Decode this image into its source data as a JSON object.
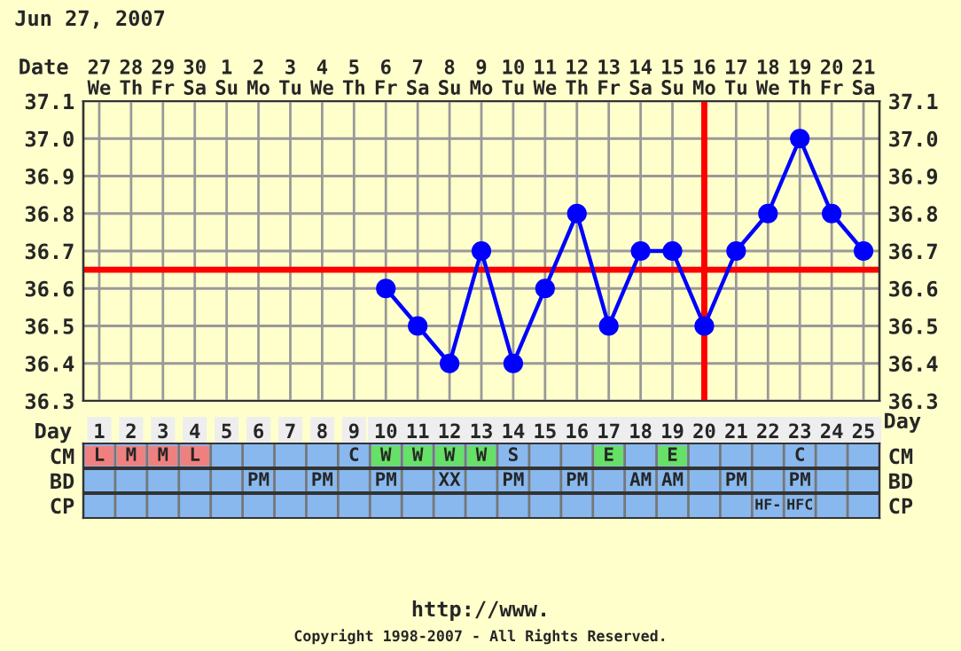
{
  "chart_data": [
    {
      "type": "line",
      "title": "Jun 27, 2007",
      "xlabel": "Day",
      "x2label": "Date",
      "series": [
        {
          "color": "#0000ff",
          "x": [
            10,
            11,
            12,
            13,
            14,
            15,
            16,
            17,
            18,
            19,
            20,
            21,
            22,
            23,
            24,
            25
          ],
          "values": [
            36.6,
            36.5,
            36.4,
            36.7,
            36.4,
            36.6,
            36.8,
            36.5,
            36.7,
            36.7,
            36.5,
            36.7,
            36.8,
            37.0,
            36.8,
            36.7
          ]
        }
      ],
      "xlim": [
        0.5,
        25.5
      ],
      "xticks": [
        1,
        2,
        3,
        4,
        5,
        6,
        7,
        8,
        9,
        10,
        11,
        12,
        13,
        14,
        15,
        16,
        17,
        18,
        19,
        20,
        21,
        22,
        23,
        24,
        25
      ],
      "x2lim": [
        "2007-06-26T12:00",
        "2007-07-21T12:00"
      ],
      "x2ticks": [
        {
          "value": "2007-06-27",
          "label": "27\nWe"
        },
        {
          "value": "2007-06-28",
          "label": "28\nTh"
        },
        {
          "value": "2007-06-29",
          "label": "29\nFr"
        },
        {
          "value": "2007-06-30",
          "label": "30\nSa"
        },
        {
          "value": "2007-07-01",
          "label": "1\nSu"
        },
        {
          "value": "2007-07-02",
          "label": "2\nMo"
        },
        {
          "value": "2007-07-03",
          "label": "3\nTu"
        },
        {
          "value": "2007-07-04",
          "label": "4\nWe"
        },
        {
          "value": "2007-07-05",
          "label": "5\nTh"
        },
        {
          "value": "2007-07-06",
          "label": "6\nFr"
        },
        {
          "value": "2007-07-07",
          "label": "7\nSa"
        },
        {
          "value": "2007-07-08",
          "label": "8\nSu"
        },
        {
          "value": "2007-07-09",
          "label": "9\nMo"
        },
        {
          "value": "2007-07-10",
          "label": "10\nTu"
        },
        {
          "value": "2007-07-11",
          "label": "11\nWe"
        },
        {
          "value": "2007-07-12",
          "label": "12\nTh"
        },
        {
          "value": "2007-07-13",
          "label": "13\nFr"
        },
        {
          "value": "2007-07-14",
          "label": "14\nSa"
        },
        {
          "value": "2007-07-15",
          "label": "15\nSu"
        },
        {
          "value": "2007-07-16",
          "label": "16\nMo"
        },
        {
          "value": "2007-07-17",
          "label": "17\nTu"
        },
        {
          "value": "2007-07-18",
          "label": "18\nWe"
        },
        {
          "value": "2007-07-19",
          "label": "19\nTh"
        },
        {
          "value": "2007-07-20",
          "label": "20\nFr"
        },
        {
          "value": "2007-07-21",
          "label": "21\nSa"
        }
      ],
      "ylim": [
        36.3,
        37.1
      ],
      "yticks": [
        36.3,
        36.4,
        36.5,
        36.6,
        36.7,
        36.8,
        36.9,
        {
          "value": 37.0,
          "label": "37.0"
        },
        37.1
      ],
      "y2lim": [
        36.3,
        37.1
      ],
      "y2ticks": [
        36.3,
        36.4,
        36.5,
        36.6,
        36.7,
        36.8,
        36.9,
        {
          "value": 37.0,
          "label": "37.0"
        },
        37.1
      ],
      "ref_lines": [
        {
          "axis": "y",
          "value": 36.65,
          "color": "#ff0000"
        },
        {
          "axis": "x",
          "value": 20,
          "color": "#ff0000"
        }
      ],
      "grid": true,
      "marker": "circle",
      "line_style": "solid",
      "annotations": [
        "http://www.",
        "Copyright 1998-2007 - All Rights Reserved."
      ]
    },
    {
      "type": "heatmap",
      "categories": [
        "1",
        "2",
        "3",
        "4",
        "5",
        "6",
        "7",
        "8",
        "9",
        "10",
        "11",
        "12",
        "13",
        "14",
        "15",
        "16",
        "17",
        "18",
        "19",
        "20",
        "21",
        "22",
        "23",
        "24",
        "25"
      ],
      "y_categories": [
        "CM",
        "BD",
        "CP"
      ],
      "y2_categories": [
        "CM",
        "BD",
        "CP"
      ],
      "tick_labels": "y",
      "cells": [
        [
          null,
          null,
          null,
          null,
          null,
          null,
          null,
          null,
          null,
          null,
          null,
          null,
          null,
          null,
          null,
          null,
          null,
          null,
          null,
          null,
          null,
          null,
          null,
          null,
          null
        ],
        [
          null,
          null,
          null,
          null,
          null,
          null,
          null,
          null,
          null,
          null,
          null,
          null,
          null,
          null,
          null,
          null,
          null,
          null,
          null,
          null,
          null,
          null,
          null,
          null,
          null
        ],
        [
          null,
          null,
          null,
          null,
          null,
          null,
          null,
          null,
          null,
          null,
          null,
          null,
          null,
          null,
          null,
          null,
          null,
          null,
          null,
          null,
          null,
          null,
          null,
          null,
          null
        ]
      ],
      "cell_labels": [
        [
          "L",
          "M",
          "M",
          "L",
          null,
          null,
          null,
          null,
          "C",
          "W",
          "W",
          "W",
          "W",
          "S",
          null,
          null,
          "E",
          null,
          "E",
          null,
          null,
          null,
          "C",
          null,
          null
        ],
        [
          null,
          null,
          null,
          null,
          null,
          "PM",
          null,
          "PM",
          null,
          "PM",
          null,
          "XX",
          null,
          "PM",
          null,
          "PM",
          null,
          "AM",
          "AM",
          null,
          "PM",
          null,
          "PM",
          null,
          null
        ],
        [
          null,
          null,
          null,
          null,
          null,
          null,
          null,
          null,
          null,
          null,
          null,
          null,
          null,
          null,
          null,
          null,
          null,
          null,
          null,
          null,
          null,
          "HF-",
          "HFC",
          null,
          null
        ]
      ],
      "colors": [
        [
          "#f08080",
          "#f08080",
          "#f08080",
          "#f08080",
          null,
          null,
          null,
          null,
          null,
          "#66e066",
          "#66e066",
          "#66e066",
          "#66e066",
          null,
          null,
          null,
          "#66e066",
          null,
          "#66e066",
          null,
          null,
          null,
          null,
          null,
          null
        ],
        [
          null,
          null,
          null,
          null,
          null,
          null,
          null,
          null,
          null,
          null,
          null,
          null,
          null,
          null,
          null,
          null,
          null,
          null,
          null,
          null,
          null,
          null,
          null,
          null,
          null
        ],
        [
          null,
          null,
          null,
          null,
          null,
          null,
          null,
          null,
          null,
          null,
          null,
          null,
          null,
          null,
          null,
          null,
          null,
          null,
          null,
          null,
          null,
          null,
          null,
          null,
          null
        ]
      ]
    }
  ]
}
